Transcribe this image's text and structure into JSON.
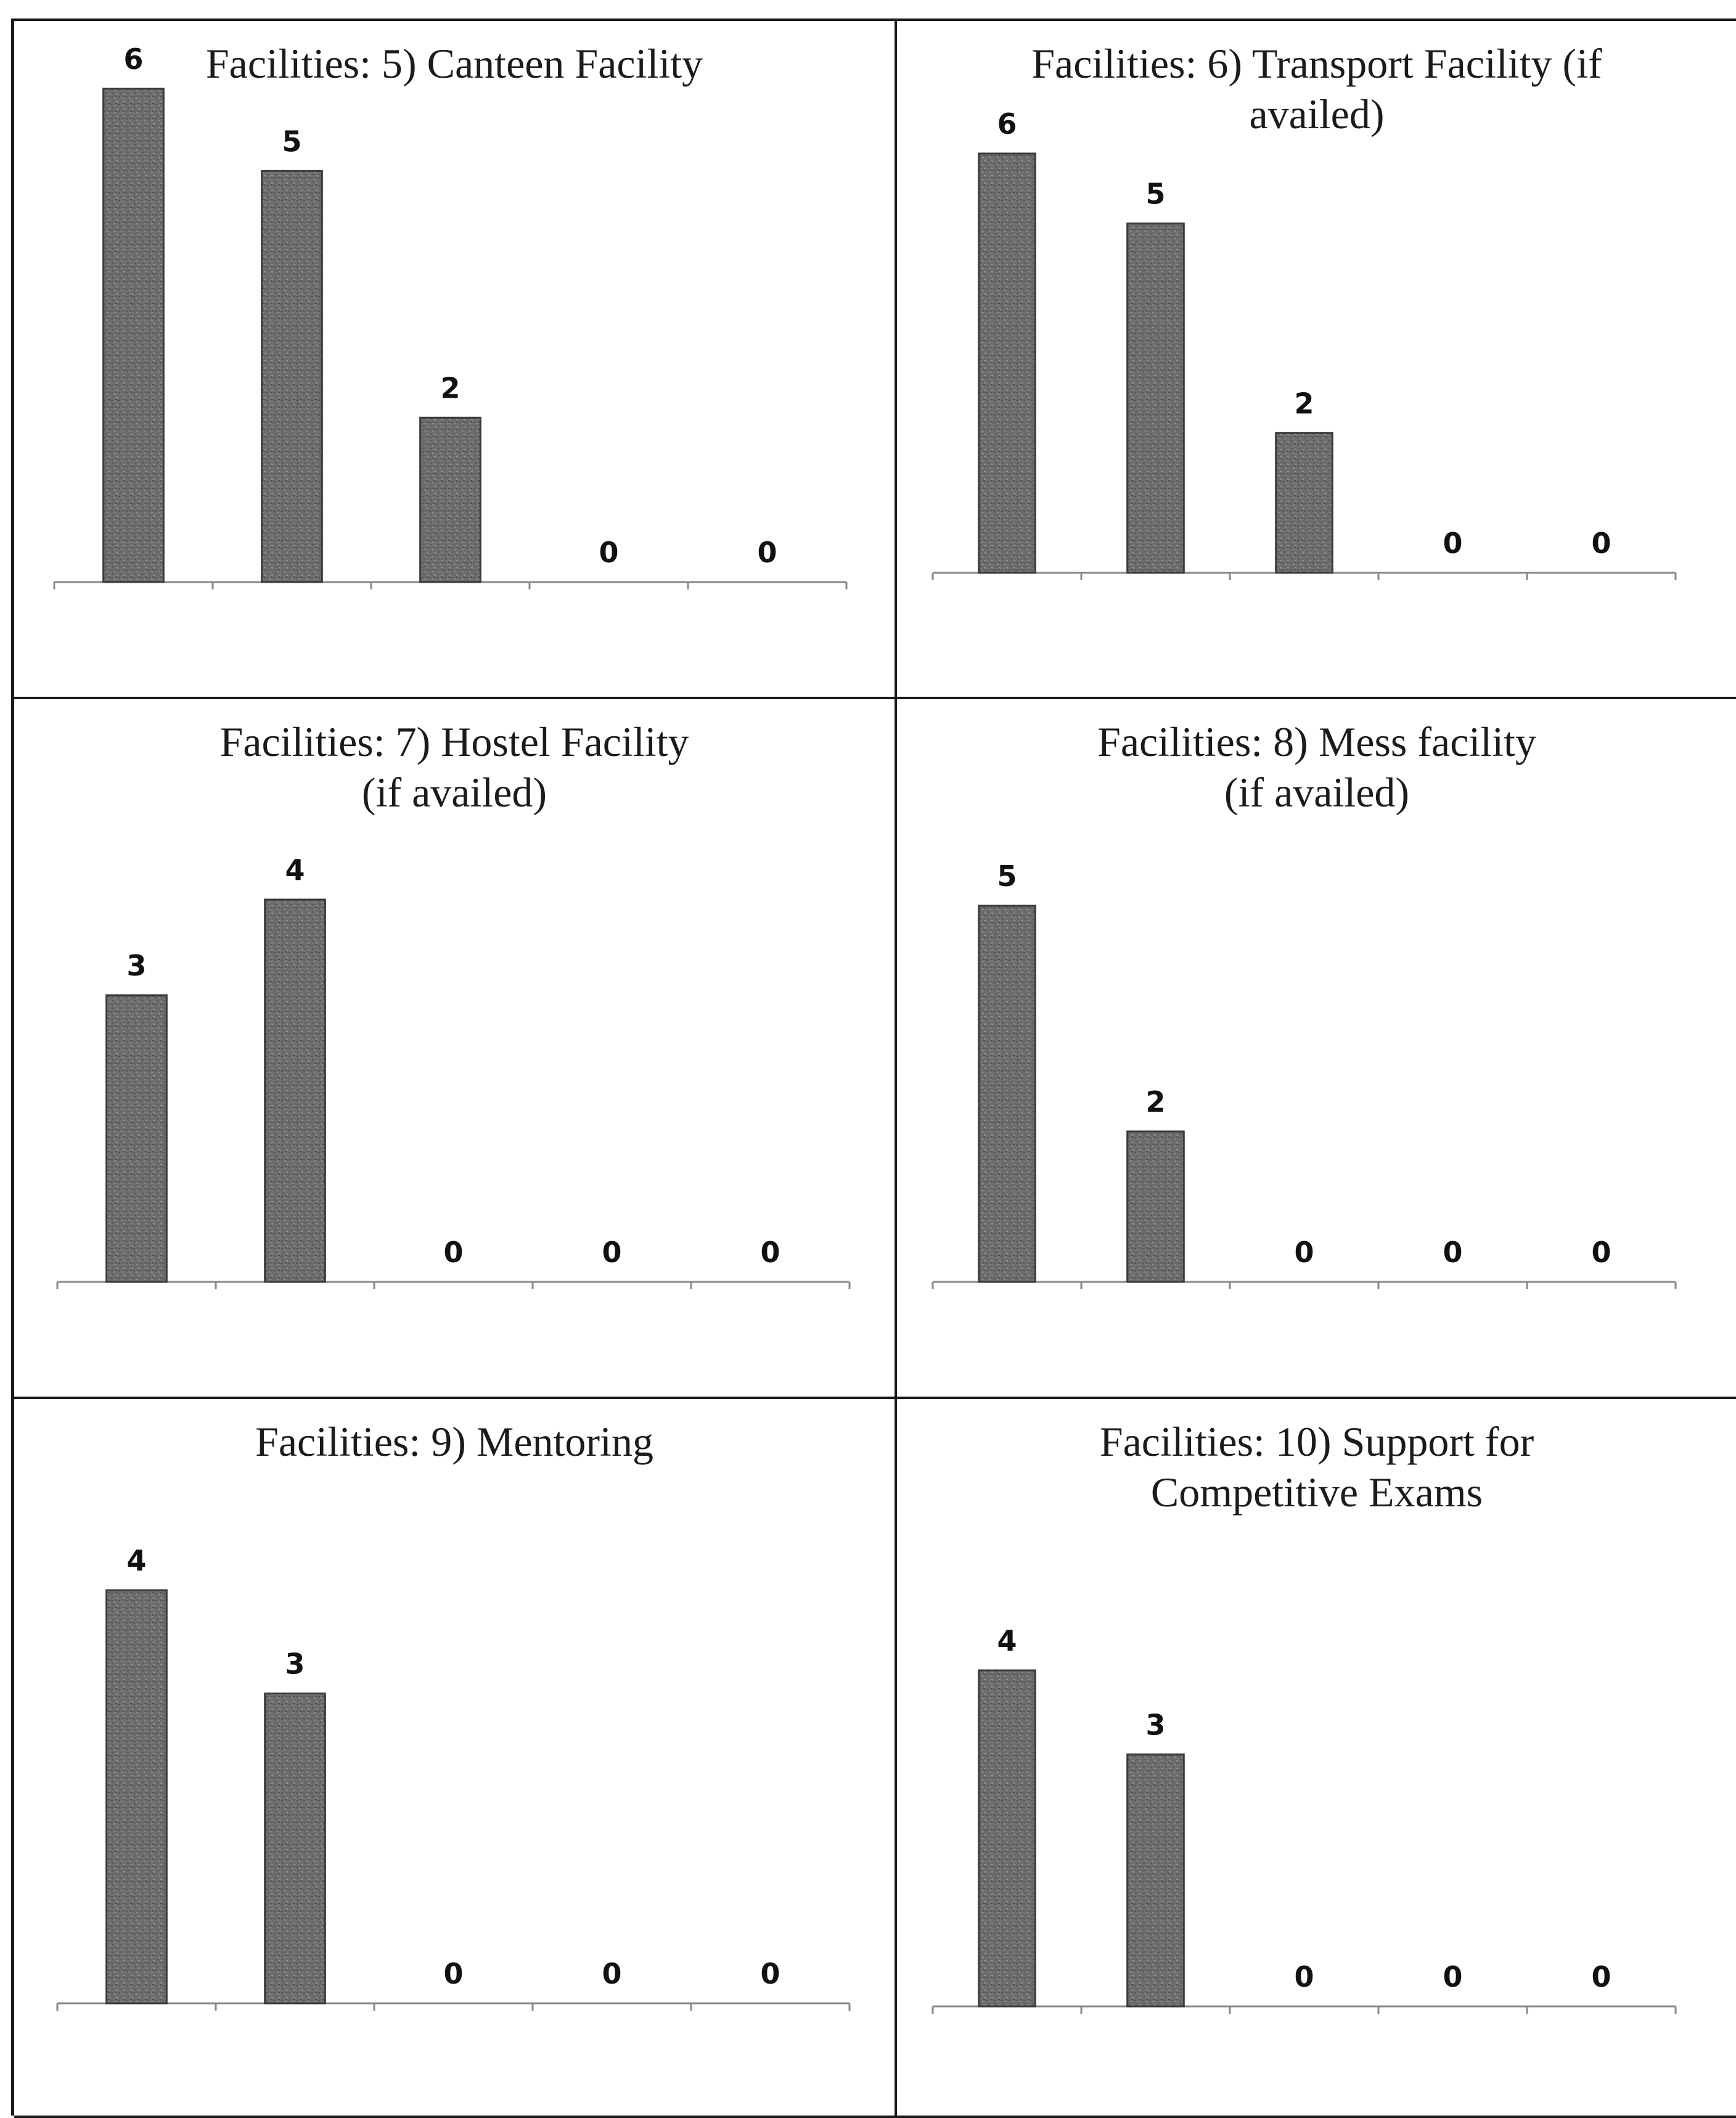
{
  "page": {
    "bar_color": "#6e6e6e",
    "bar_edge_color": "#3a3a3a",
    "axis_color": "#888888"
  },
  "chart_data": [
    {
      "type": "bar",
      "title": "Facilities: 5) Canteen Facility",
      "categories": [
        "",
        "",
        "",
        "",
        ""
      ],
      "values": [
        6,
        5,
        2,
        0,
        0
      ],
      "ylim": [
        0,
        6
      ],
      "grid": false,
      "legend": "none"
    },
    {
      "type": "bar",
      "title": "Facilities: 6) Transport Facility (if\navailed)",
      "categories": [
        "",
        "",
        "",
        "",
        ""
      ],
      "values": [
        6,
        5,
        2,
        0,
        0
      ],
      "ylim": [
        0,
        6
      ],
      "grid": false,
      "legend": "none"
    },
    {
      "type": "bar",
      "title": "Facilities:  7) Hostel Facility\n(if availed)",
      "categories": [
        "",
        "",
        "",
        "",
        ""
      ],
      "values": [
        3,
        4,
        0,
        0,
        0
      ],
      "ylim": [
        0,
        4
      ],
      "grid": false,
      "legend": "none"
    },
    {
      "type": "bar",
      "title": "Facilities: 8) Mess facility\n(if availed)",
      "categories": [
        "",
        "",
        "",
        "",
        ""
      ],
      "values": [
        5,
        2,
        0,
        0,
        0
      ],
      "ylim": [
        0,
        5
      ],
      "grid": false,
      "legend": "none"
    },
    {
      "type": "bar",
      "title": "Facilities:  9) Mentoring",
      "categories": [
        "",
        "",
        "",
        "",
        ""
      ],
      "values": [
        4,
        3,
        0,
        0,
        0
      ],
      "ylim": [
        0,
        4
      ],
      "grid": false,
      "legend": "none"
    },
    {
      "type": "bar",
      "title": "Facilities: 10) Support for\nCompetitive Exams",
      "categories": [
        "",
        "",
        "",
        "",
        ""
      ],
      "values": [
        4,
        3,
        0,
        0,
        0
      ],
      "ylim": [
        0,
        4
      ],
      "grid": false,
      "legend": "none"
    }
  ]
}
